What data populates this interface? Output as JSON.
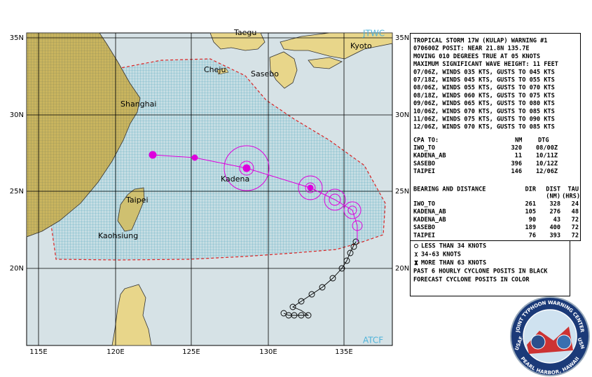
{
  "map": {
    "places": [
      "Taegu",
      "JTWC",
      "Kyoto",
      "Cheju",
      "Sasebo",
      "Shanghai",
      "Kadena",
      "Taipei",
      "Kaohsiung",
      "ATCF"
    ],
    "lat_labels": [
      "35N",
      "30N",
      "25N",
      "20N"
    ],
    "lon_labels": [
      "115E",
      "120E",
      "125E",
      "130E",
      "135E"
    ]
  },
  "warning": {
    "lines": [
      "TROPICAL STORM 17W (KULAP) WARNING #1",
      "070600Z POSIT: NEAR 21.8N 135.7E",
      "MOVING 010 DEGREES TRUE AT 05 KNOTS",
      "MAXIMUM SIGNIFICANT WAVE HEIGHT: 11 FEET",
      "07/06Z, WINDS 035 KTS, GUSTS TO 045 KTS",
      "07/18Z, WINDS 045 KTS, GUSTS TO 055 KTS",
      "08/06Z, WINDS 055 KTS, GUSTS TO 070 KTS",
      "08/18Z, WINDS 060 KTS, GUSTS TO 075 KTS",
      "09/06Z, WINDS 065 KTS, GUSTS TO 080 KTS",
      "10/06Z, WINDS 070 KTS, GUSTS TO 085 KTS",
      "11/06Z, WINDS 075 KTS, GUSTS TO 090 KTS",
      "12/06Z, WINDS 070 KTS, GUSTS TO 085 KTS"
    ]
  },
  "cpa": {
    "header": [
      "CPA TO:",
      "NM",
      "DTG"
    ],
    "rows": [
      [
        "IWO_TO",
        "320",
        "08/00Z"
      ],
      [
        "KADENA_AB",
        "11",
        "10/11Z"
      ],
      [
        "SASEBO",
        "396",
        "10/12Z"
      ],
      [
        "TAIPEI",
        "146",
        "12/06Z"
      ]
    ]
  },
  "bearing": {
    "header": [
      "BEARING AND DISTANCE",
      "DIR",
      "DIST",
      "TAU"
    ],
    "subheader": [
      "(NM)",
      "(HRS)"
    ],
    "rows": [
      [
        "IWO_TO",
        "261",
        "328",
        "24"
      ],
      [
        "KADENA_AB",
        "105",
        "276",
        "48"
      ],
      [
        "KADENA_AB",
        "90",
        "43",
        "72"
      ],
      [
        "SASEBO",
        "189",
        "400",
        "72"
      ],
      [
        "TAIPEI",
        "76",
        "393",
        "72"
      ]
    ]
  },
  "legend": {
    "lines": [
      "LESS THAN 34 KNOTS",
      "34-63 KNOTS",
      "MORE THAN 63 KNOTS",
      "PAST 6 HOURLY CYCLONE POSITS IN BLACK",
      "FORECAST CYCLONE POSITS IN COLOR"
    ]
  },
  "logo": {
    "ring": "JOINT TYPHOON WARNING CENTER",
    "left": "USAF",
    "right": "USN",
    "bottom": "PEARL HARBOR, HAWAII"
  }
}
